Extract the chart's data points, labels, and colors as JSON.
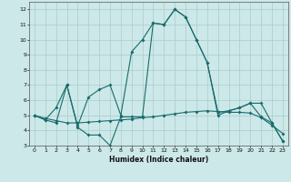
{
  "xlabel": "Humidex (Indice chaleur)",
  "xlim": [
    -0.5,
    23.5
  ],
  "ylim": [
    3,
    12.5
  ],
  "yticks": [
    3,
    4,
    5,
    6,
    7,
    8,
    9,
    10,
    11,
    12
  ],
  "xticks": [
    0,
    1,
    2,
    3,
    4,
    5,
    6,
    7,
    8,
    9,
    10,
    11,
    12,
    13,
    14,
    15,
    16,
    17,
    18,
    19,
    20,
    21,
    22,
    23
  ],
  "background_color": "#cce8e8",
  "grid_color": "#aacccc",
  "line_color": "#1a6b6b",
  "line1": {
    "x": [
      0,
      1,
      2,
      3,
      4,
      5,
      6,
      7,
      8,
      9,
      10,
      11,
      12,
      13,
      14,
      15,
      16,
      17,
      18,
      19,
      20,
      21,
      22,
      23
    ],
    "y": [
      5.0,
      4.7,
      5.5,
      7.0,
      4.3,
      6.2,
      6.7,
      7.0,
      5.0,
      9.2,
      10.0,
      11.1,
      11.0,
      12.0,
      11.5,
      10.0,
      8.5,
      5.2,
      5.3,
      5.5,
      5.8,
      5.8,
      4.5,
      3.3
    ]
  },
  "line2": {
    "x": [
      0,
      1,
      2,
      3,
      4,
      5,
      6,
      7,
      8,
      9,
      10,
      11,
      12,
      13,
      14,
      15,
      16,
      17,
      18,
      19,
      20,
      21,
      22,
      23
    ],
    "y": [
      5.0,
      4.7,
      4.5,
      7.0,
      4.2,
      3.7,
      3.7,
      3.0,
      4.9,
      4.9,
      4.9,
      11.1,
      11.0,
      12.0,
      11.5,
      10.0,
      8.5,
      5.0,
      5.3,
      5.5,
      5.8,
      4.9,
      4.5,
      3.3
    ]
  },
  "line3": {
    "x": [
      0,
      1,
      2,
      3,
      4,
      5,
      6,
      7,
      8,
      9,
      10,
      11,
      12,
      13,
      14,
      15,
      16,
      17,
      18,
      19,
      20,
      21,
      22,
      23
    ],
    "y": [
      5.0,
      4.8,
      4.65,
      4.5,
      4.5,
      4.55,
      4.6,
      4.65,
      4.7,
      4.75,
      4.85,
      4.9,
      5.0,
      5.1,
      5.2,
      5.25,
      5.3,
      5.25,
      5.2,
      5.2,
      5.15,
      4.85,
      4.35,
      3.8
    ]
  }
}
